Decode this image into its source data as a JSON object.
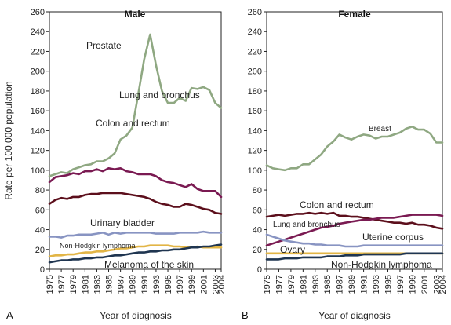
{
  "chart_data": [
    {
      "type": "line",
      "panel_letter": "A",
      "title": "Male",
      "xlabel": "Year of diagnosis",
      "ylabel": "Rate per 100,000 population",
      "ylim": [
        0,
        260
      ],
      "yticks": [
        0,
        20,
        40,
        60,
        80,
        100,
        120,
        140,
        160,
        180,
        200,
        220,
        240,
        260
      ],
      "x": [
        1975,
        1976,
        1977,
        1978,
        1979,
        1980,
        1981,
        1982,
        1983,
        1984,
        1985,
        1986,
        1987,
        1988,
        1989,
        1990,
        1991,
        1992,
        1993,
        1994,
        1995,
        1996,
        1997,
        1998,
        1999,
        2000,
        2001,
        2002,
        2003,
        2004
      ],
      "xtick_labels": [
        "1975",
        "1977",
        "1979",
        "1981",
        "1983",
        "1985",
        "1987",
        "1989",
        "1991",
        "1993",
        "1995",
        "1997",
        "1999",
        "2001",
        "2003",
        "2004"
      ],
      "grid": false,
      "series": [
        {
          "name": "Prostate",
          "color": "#8fa882",
          "values": [
            94,
            96,
            98,
            97,
            101,
            103,
            105,
            106,
            109,
            109,
            112,
            117,
            131,
            135,
            143,
            177,
            212,
            237,
            206,
            180,
            168,
            168,
            173,
            170,
            183,
            182,
            184,
            181,
            168,
            163
          ]
        },
        {
          "name": "Lung and bronchus",
          "color": "#7a1a52",
          "values": [
            88,
            93,
            94,
            95,
            97,
            96,
            99,
            99,
            101,
            99,
            102,
            101,
            102,
            99,
            98,
            96,
            96,
            96,
            94,
            90,
            88,
            87,
            85,
            83,
            86,
            81,
            79,
            79,
            79,
            73
          ]
        },
        {
          "name": "Colon and rectum",
          "color": "#5c0f1c",
          "values": [
            66,
            70,
            72,
            71,
            73,
            73,
            75,
            76,
            76,
            77,
            77,
            77,
            77,
            76,
            75,
            74,
            73,
            71,
            68,
            66,
            65,
            63,
            63,
            66,
            65,
            63,
            61,
            60,
            57,
            56
          ]
        },
        {
          "name": "Urinary bladder",
          "color": "#8894c2",
          "values": [
            33,
            33,
            32,
            34,
            34,
            35,
            35,
            35,
            36,
            37,
            35,
            37,
            36,
            37,
            37,
            37,
            37,
            37,
            36,
            36,
            36,
            36,
            37,
            37,
            37,
            37,
            38,
            37,
            37,
            37
          ]
        },
        {
          "name": "Non-Hodgkin lymphoma",
          "color": "#e2b546",
          "values": [
            13,
            14,
            14,
            15,
            15,
            16,
            17,
            17,
            18,
            18,
            19,
            20,
            21,
            21,
            22,
            23,
            23,
            24,
            24,
            24,
            24,
            23,
            23,
            22,
            22,
            23,
            22,
            22,
            22,
            22
          ]
        },
        {
          "name": "Melanoma of the skin",
          "color": "#1f3550",
          "values": [
            7,
            8,
            9,
            9,
            10,
            10,
            11,
            11,
            12,
            12,
            13,
            14,
            14,
            15,
            16,
            17,
            17,
            18,
            18,
            19,
            19,
            20,
            20,
            21,
            22,
            22,
            23,
            23,
            24,
            25
          ]
        }
      ]
    },
    {
      "type": "line",
      "panel_letter": "B",
      "title": "Female",
      "xlabel": "Year of diagnosis",
      "ylabel": "",
      "ylim": [
        0,
        260
      ],
      "yticks": [
        0,
        20,
        40,
        60,
        80,
        100,
        120,
        140,
        160,
        180,
        200,
        220,
        240,
        260
      ],
      "x": [
        1975,
        1976,
        1977,
        1978,
        1979,
        1980,
        1981,
        1982,
        1983,
        1984,
        1985,
        1986,
        1987,
        1988,
        1989,
        1990,
        1991,
        1992,
        1993,
        1994,
        1995,
        1996,
        1997,
        1998,
        1999,
        2000,
        2001,
        2002,
        2003,
        2004
      ],
      "xtick_labels": [
        "1975",
        "1977",
        "1979",
        "1981",
        "1983",
        "1985",
        "1987",
        "1989",
        "1991",
        "1993",
        "1995",
        "1997",
        "1999",
        "2001",
        "2003",
        "2004"
      ],
      "grid": false,
      "series": [
        {
          "name": "Breast",
          "color": "#8fa882",
          "values": [
            105,
            102,
            101,
            100,
            102,
            102,
            106,
            106,
            111,
            116,
            124,
            129,
            136,
            133,
            131,
            134,
            136,
            135,
            132,
            134,
            134,
            136,
            138,
            142,
            144,
            141,
            141,
            137,
            128,
            128
          ]
        },
        {
          "name": "Colon and rectum",
          "color": "#5c0f1c",
          "values": [
            53,
            54,
            55,
            54,
            55,
            56,
            56,
            57,
            56,
            57,
            56,
            57,
            54,
            54,
            53,
            53,
            52,
            51,
            50,
            49,
            48,
            47,
            47,
            46,
            47,
            45,
            45,
            44,
            42,
            41
          ]
        },
        {
          "name": "Lung and bronchus",
          "color": "#7a1a52",
          "values": [
            24,
            26,
            28,
            30,
            32,
            34,
            36,
            38,
            40,
            42,
            43,
            44,
            46,
            47,
            48,
            49,
            50,
            50,
            51,
            52,
            52,
            52,
            53,
            54,
            55,
            55,
            55,
            55,
            55,
            54
          ]
        },
        {
          "name": "Uterine corpus",
          "color": "#8894c2",
          "values": [
            35,
            33,
            31,
            29,
            28,
            27,
            26,
            26,
            25,
            25,
            24,
            24,
            24,
            23,
            23,
            23,
            24,
            24,
            24,
            24,
            24,
            24,
            24,
            24,
            24,
            24,
            24,
            24,
            24,
            24
          ]
        },
        {
          "name": "Ovary",
          "color": "#e2b546",
          "values": [
            16,
            16,
            16,
            16,
            16,
            16,
            16,
            16,
            16,
            16,
            16,
            16,
            16,
            16,
            16,
            16,
            16,
            16,
            16,
            16,
            16,
            16,
            16,
            16,
            16,
            16,
            16,
            16,
            16,
            16
          ]
        },
        {
          "name": "Non-Hodgkin lymphoma",
          "color": "#1f3550",
          "values": [
            10,
            10,
            10,
            11,
            11,
            11,
            12,
            12,
            12,
            12,
            13,
            13,
            13,
            14,
            14,
            14,
            15,
            15,
            15,
            15,
            15,
            15,
            15,
            16,
            16,
            16,
            16,
            16,
            16,
            16
          ]
        }
      ]
    }
  ]
}
